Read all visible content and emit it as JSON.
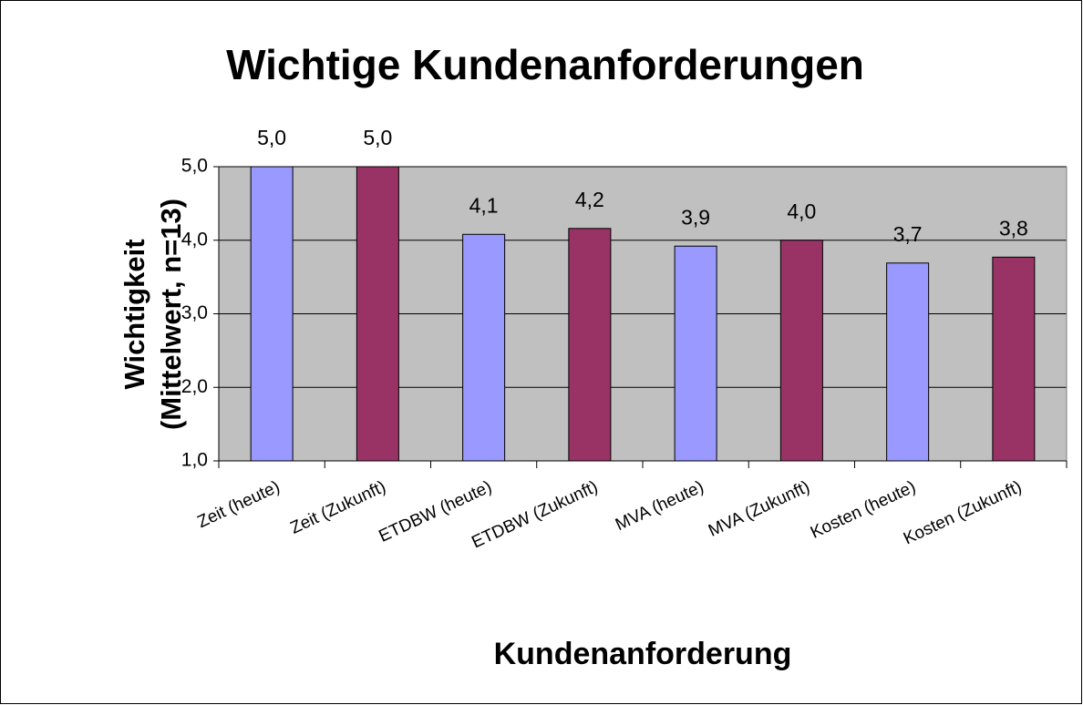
{
  "chart_data": {
    "type": "bar",
    "title": "Wichtige Kundenanforderungen",
    "x_label": "Kundenanforderung",
    "y_label": [
      "Wichtigkeit",
      "(Mittelwert, n=13)"
    ],
    "categories": [
      "Zeit (heute)",
      "Zeit (Zukunft)",
      "ETDBW (heute)",
      "ETDBW (Zukunft)",
      "MVA (heute)",
      "MVA (Zukunft)",
      "Kosten (heute)",
      "Kosten (Zukunft)"
    ],
    "values": [
      5.0,
      5.0,
      4.08,
      4.16,
      3.92,
      4.0,
      3.69,
      3.77
    ],
    "value_labels": [
      "5,0",
      "5,0",
      "4,1",
      "4,2",
      "3,9",
      "4,0",
      "3,7",
      "3,8"
    ],
    "colors": [
      "#9999ff",
      "#993366",
      "#9999ff",
      "#993366",
      "#9999ff",
      "#993366",
      "#9999ff",
      "#993366"
    ],
    "ylim": [
      1,
      5
    ],
    "yticks": [
      {
        "value": 1,
        "label": "1,0"
      },
      {
        "value": 2,
        "label": "2,0"
      },
      {
        "value": 3,
        "label": "3,0"
      },
      {
        "value": 4,
        "label": "4,0"
      },
      {
        "value": 5,
        "label": "5,0"
      }
    ],
    "grid": true,
    "plot_background": "#c0c0c0"
  }
}
